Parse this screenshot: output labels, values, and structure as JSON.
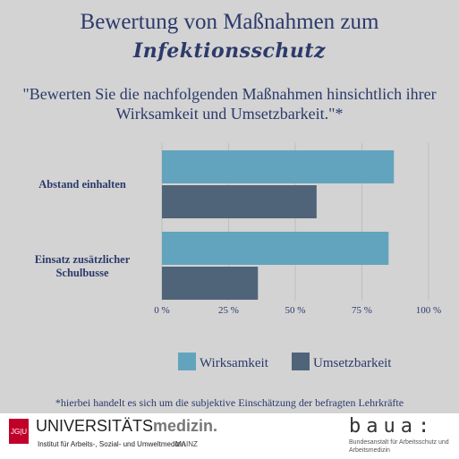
{
  "header": {
    "title_line1": "Bewertung von Maßnahmen zum",
    "title_line2": "Infektionsschutz",
    "question": "\"Bewerten Sie die nachfolgenden Maßnahmen hinsichtlich ihrer Wirksamkeit und Umsetzbarkeit.\"*"
  },
  "chart_data": {
    "type": "bar",
    "orientation": "horizontal",
    "categories": [
      "Abstand einhalten",
      "Einsatz zusätzlicher Schulbusse"
    ],
    "series": [
      {
        "name": "Wirksamkeit",
        "values": [
          87,
          85
        ]
      },
      {
        "name": "Umsetzbarkeit",
        "values": [
          58,
          36
        ]
      }
    ],
    "xlim": [
      0,
      100
    ],
    "xticks": [
      "0 %",
      "25 %",
      "50 %",
      "75 %",
      "100 %"
    ],
    "tick_values": [
      0,
      25,
      50,
      75,
      100
    ],
    "grid": true,
    "legend_position": "bottom",
    "colors": [
      "#62a4bd",
      "#506479"
    ]
  },
  "footnote": "*hierbei handelt es sich um die subjektive Einschätzung der befragten Lehrkräfte",
  "logos": {
    "jgu": "JG|U",
    "uni_light": "UNIVERSITÄTS",
    "uni_bold": "medizin.",
    "uni_sub": "Institut für Arbeits-, Sozial- und Umweltmedizin",
    "uni_city": "MAINZ",
    "baua": "baua:",
    "baua_sub": "Bundesanstalt für Arbeitsschutz und Arbeitsmedizin"
  }
}
